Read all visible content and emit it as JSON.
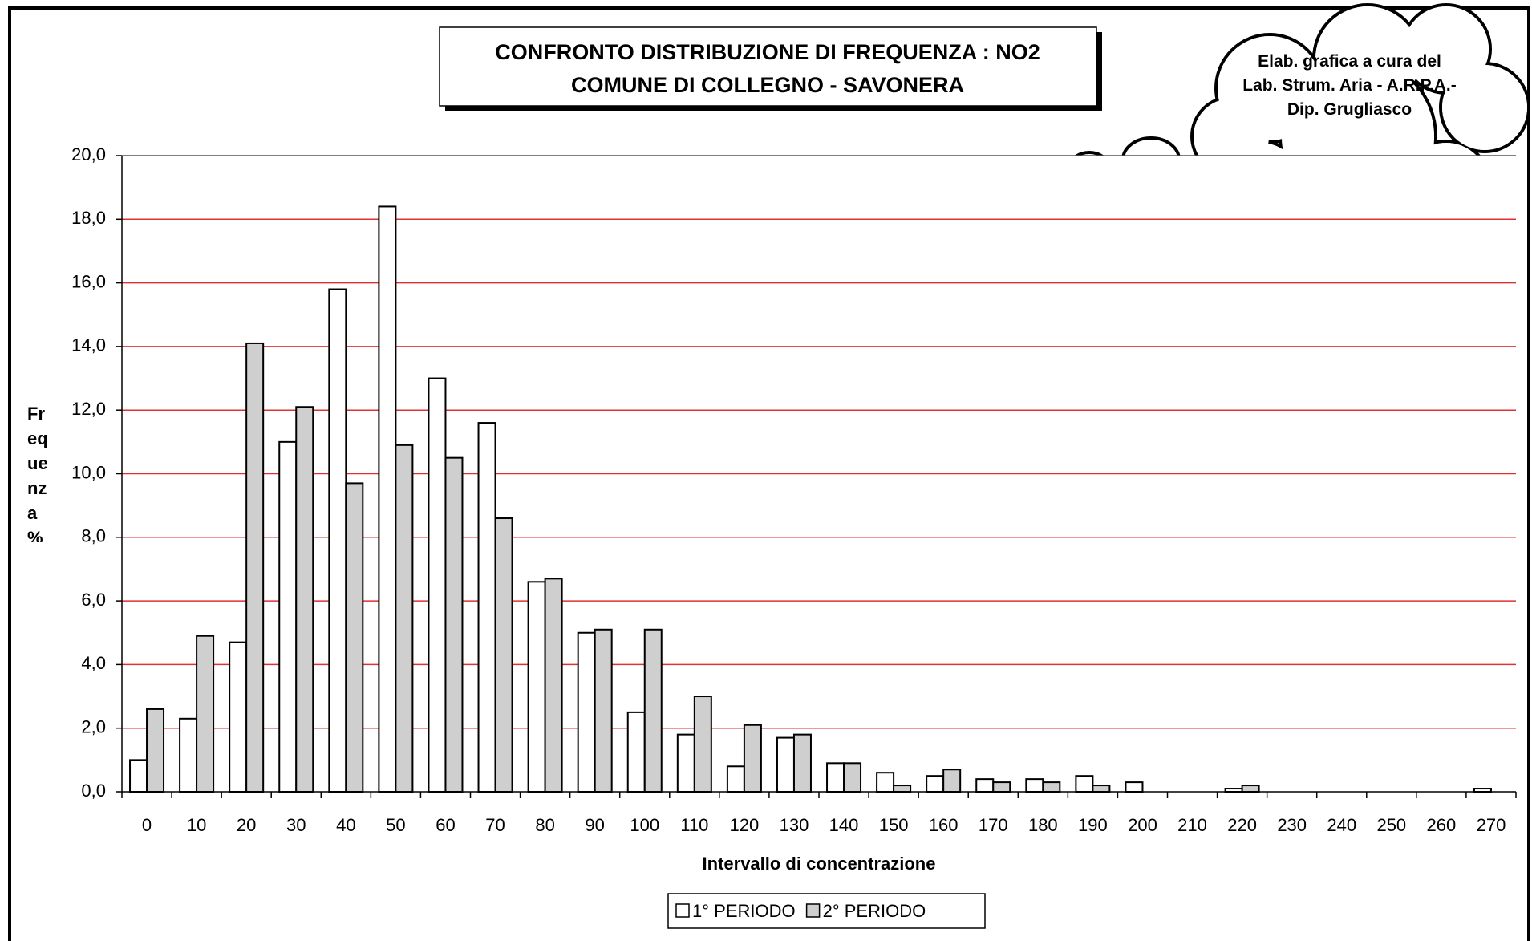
{
  "chart_data": {
    "type": "bar",
    "title": "CONFRONTO DISTRIBUZIONE DI FREQUENZA : NO2",
    "subtitle": "COMUNE DI COLLEGNO - SAVONERA",
    "annotation": "Elab. grafica a cura del Lab. Strum. Aria - A.R.P.A.- Dip. Grugliasco",
    "x_label": "Intervallo di concentrazione",
    "y_label": "Frequenza %",
    "categories": [
      "0",
      "10",
      "20",
      "30",
      "40",
      "50",
      "60",
      "70",
      "80",
      "90",
      "100",
      "110",
      "120",
      "130",
      "140",
      "150",
      "160",
      "170",
      "180",
      "190",
      "200",
      "210",
      "220",
      "230",
      "240",
      "250",
      "260",
      "270"
    ],
    "series": [
      {
        "name": "1° PERIODO",
        "color": "#ffffff",
        "values": [
          1.0,
          2.3,
          4.7,
          11.0,
          15.8,
          18.4,
          13.0,
          11.6,
          6.6,
          5.0,
          2.5,
          1.8,
          0.8,
          1.7,
          0.9,
          0.6,
          0.5,
          0.4,
          0.4,
          0.5,
          0.3,
          0,
          0.1,
          0,
          0,
          0,
          0,
          0.1
        ]
      },
      {
        "name": "2° PERIODO",
        "color": "#cfcfcf",
        "values": [
          2.6,
          4.9,
          14.1,
          12.1,
          9.7,
          10.9,
          10.5,
          8.6,
          6.7,
          5.1,
          5.1,
          3.0,
          2.1,
          1.8,
          0.9,
          0.2,
          0.7,
          0.3,
          0.3,
          0.2,
          0,
          0,
          0.2,
          0,
          0,
          0,
          0,
          0
        ]
      }
    ],
    "ylim": [
      0,
      20
    ],
    "yticks": [
      {
        "value": 0,
        "label": "0,0"
      },
      {
        "value": 2,
        "label": "2,0"
      },
      {
        "value": 4,
        "label": "4,0"
      },
      {
        "value": 6,
        "label": "6,0"
      },
      {
        "value": 8,
        "label": "8,0"
      },
      {
        "value": 10,
        "label": "10,0"
      },
      {
        "value": 12,
        "label": "12,0"
      },
      {
        "value": 14,
        "label": "14,0"
      },
      {
        "value": 16,
        "label": "16,0"
      },
      {
        "value": 18,
        "label": "18,0"
      },
      {
        "value": 20,
        "label": "20,0"
      }
    ],
    "grid": true,
    "grid_color": "#e03030",
    "legend": "bottom"
  }
}
